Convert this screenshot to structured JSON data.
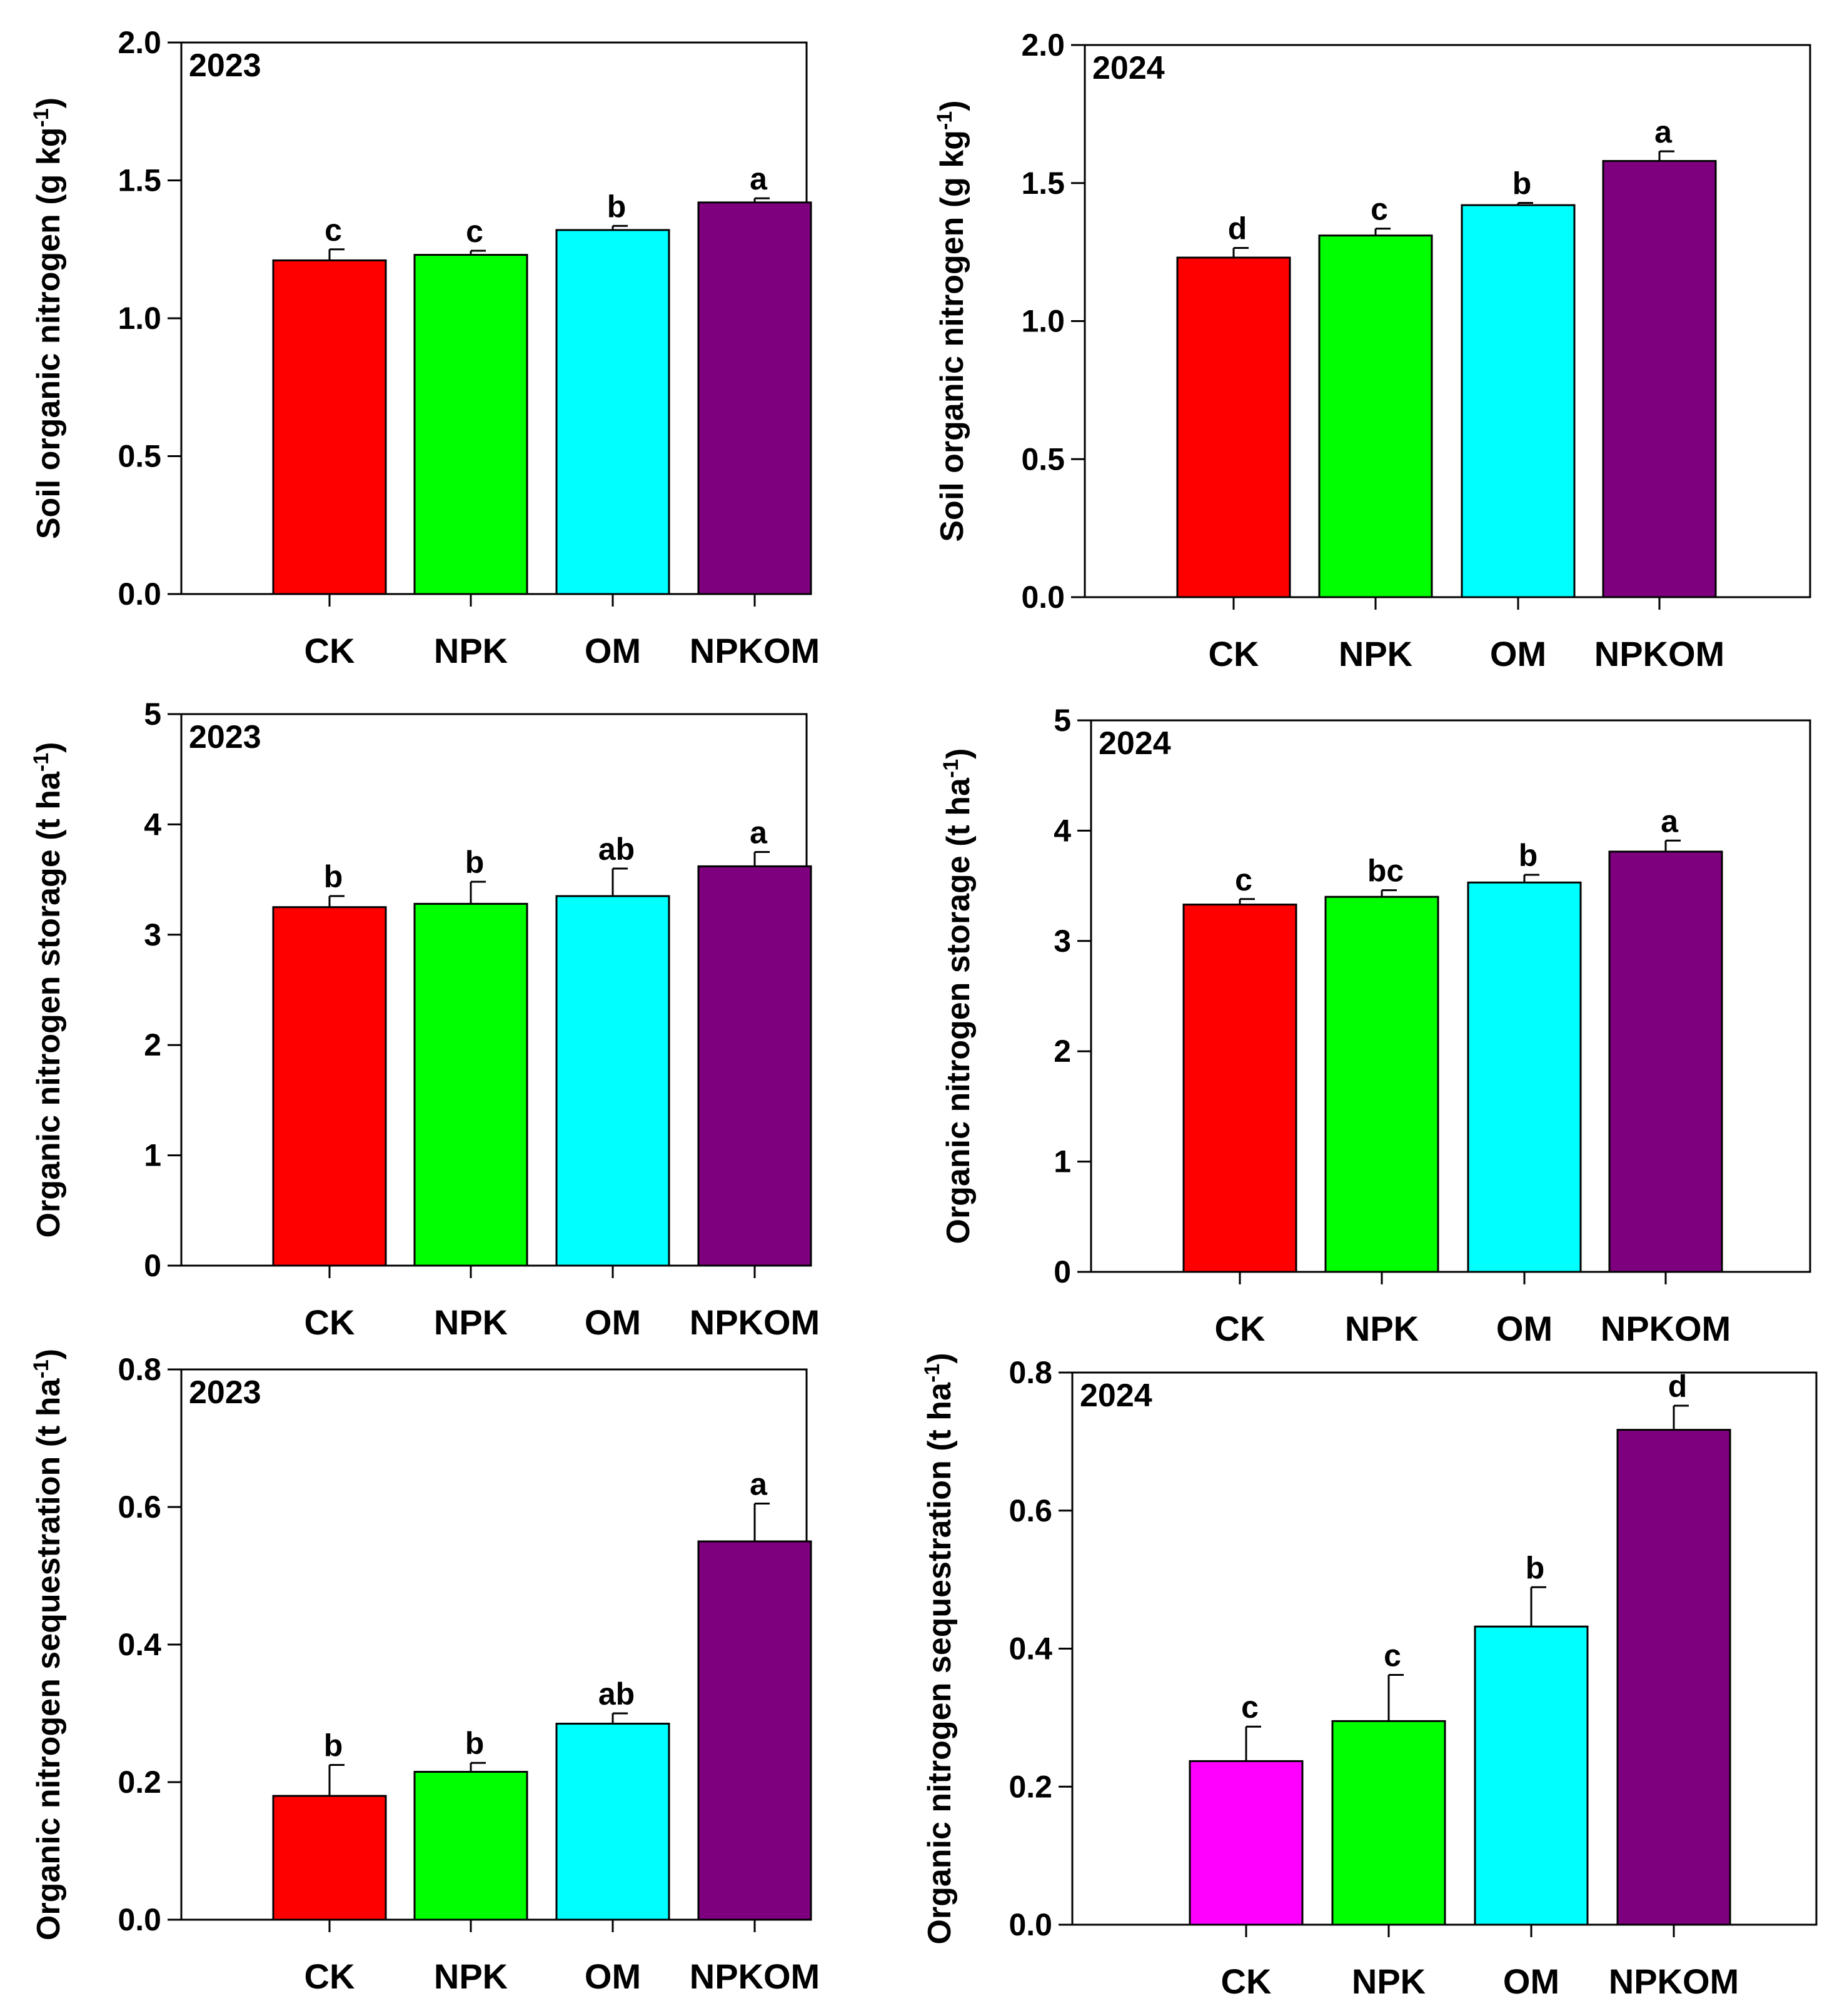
{
  "colors": {
    "CK": "#ff0000",
    "NPK": "#00ff00",
    "OM": "#00ffff",
    "NPKOM": "#7f007f",
    "CK_2024_sequestration": "#ff00ff"
  },
  "chart_data": [
    {
      "type": "bar",
      "panel": "top-left",
      "year_label": "2023",
      "categories": [
        "CK",
        "NPK",
        "OM",
        "NPKOM"
      ],
      "values": [
        1.21,
        1.23,
        1.32,
        1.42
      ],
      "errors": [
        0.04,
        0.015,
        0.015,
        0.015
      ],
      "significance": [
        "c",
        "c",
        "b",
        "a"
      ],
      "ylabel_main": "Soil organic nitrogen (g kg",
      "ylabel_sup": "-1",
      "ylabel_close": ")",
      "ylim": [
        0,
        2.0
      ],
      "ticks": [
        "0.0",
        "0.5",
        "1.0",
        "1.5",
        "2.0"
      ],
      "bar_colors": [
        "#ff0000",
        "#00ff00",
        "#00ffff",
        "#7f007f"
      ],
      "xlabel": "",
      "grid": false
    },
    {
      "type": "bar",
      "panel": "top-right",
      "year_label": "2024",
      "categories": [
        "CK",
        "NPK",
        "OM",
        "NPKOM"
      ],
      "values": [
        1.23,
        1.31,
        1.42,
        1.58
      ],
      "errors": [
        0.035,
        0.025,
        0.008,
        0.035
      ],
      "significance": [
        "d",
        "c",
        "b",
        "a"
      ],
      "ylabel_main": "Soil organic nitrogen (g kg",
      "ylabel_sup": "-1",
      "ylabel_close": ")",
      "ylim": [
        0,
        2.0
      ],
      "ticks": [
        "0.0",
        "0.5",
        "1.0",
        "1.5",
        "2.0"
      ],
      "bar_colors": [
        "#ff0000",
        "#00ff00",
        "#00ffff",
        "#7f007f"
      ],
      "xlabel": "",
      "grid": false
    },
    {
      "type": "bar",
      "panel": "middle-left",
      "year_label": "2023",
      "categories": [
        "CK",
        "NPK",
        "OM",
        "NPKOM"
      ],
      "values": [
        3.25,
        3.28,
        3.35,
        3.62
      ],
      "errors": [
        0.1,
        0.2,
        0.25,
        0.13
      ],
      "significance": [
        "b",
        "b",
        "ab",
        "a"
      ],
      "ylabel_main": "Organic nitrogen storage (t ha",
      "ylabel_sup": "-1",
      "ylabel_close": ")",
      "ylim": [
        0,
        5
      ],
      "ticks": [
        "0",
        "1",
        "2",
        "3",
        "4",
        "5"
      ],
      "bar_colors": [
        "#ff0000",
        "#00ff00",
        "#00ffff",
        "#7f007f"
      ],
      "xlabel": "",
      "grid": false
    },
    {
      "type": "bar",
      "panel": "middle-right",
      "year_label": "2024",
      "categories": [
        "CK",
        "NPK",
        "OM",
        "NPKOM"
      ],
      "values": [
        3.33,
        3.4,
        3.53,
        3.81
      ],
      "errors": [
        0.05,
        0.06,
        0.07,
        0.1
      ],
      "significance": [
        "c",
        "bc",
        "b",
        "a"
      ],
      "ylabel_main": "Organic nitrogen storage (t ha",
      "ylabel_sup": "-1",
      "ylabel_close": ")",
      "ylim": [
        0,
        5
      ],
      "ticks": [
        "0",
        "1",
        "2",
        "3",
        "4",
        "5"
      ],
      "bar_colors": [
        "#ff0000",
        "#00ff00",
        "#00ffff",
        "#7f007f"
      ],
      "xlabel": "",
      "grid": false
    },
    {
      "type": "bar",
      "panel": "bottom-left",
      "year_label": "2023",
      "categories": [
        "CK",
        "NPK",
        "OM",
        "NPKOM"
      ],
      "values": [
        0.18,
        0.215,
        0.285,
        0.55
      ],
      "errors": [
        0.045,
        0.013,
        0.015,
        0.055
      ],
      "significance": [
        "b",
        "b",
        "ab",
        "a"
      ],
      "ylabel_main": "Organic nitrogen sequestration (t ha",
      "ylabel_sup": "-1",
      "ylabel_close": ")",
      "ylim": [
        0,
        0.8
      ],
      "ticks": [
        "0.0",
        "0.2",
        "0.4",
        "0.6",
        "0.8"
      ],
      "bar_colors": [
        "#ff0000",
        "#00ff00",
        "#00ffff",
        "#7f007f"
      ],
      "xlabel": "",
      "grid": false
    },
    {
      "type": "bar",
      "panel": "bottom-right",
      "year_label": "2024",
      "categories": [
        "CK",
        "NPK",
        "OM",
        "NPKOM"
      ],
      "values": [
        0.237,
        0.295,
        0.432,
        0.717
      ],
      "errors": [
        0.05,
        0.067,
        0.057,
        0.035
      ],
      "significance": [
        "c",
        "c",
        "b",
        "d"
      ],
      "ylabel_main": "Organic nitrogen sequestration (t ha",
      "ylabel_sup": "-1",
      "ylabel_close": ")",
      "ylim": [
        0,
        0.8
      ],
      "ticks": [
        "0.0",
        "0.2",
        "0.4",
        "0.6",
        "0.8"
      ],
      "bar_colors": [
        "#ff00ff",
        "#00ff00",
        "#00ffff",
        "#7f007f"
      ],
      "xlabel": "",
      "grid": false
    }
  ]
}
